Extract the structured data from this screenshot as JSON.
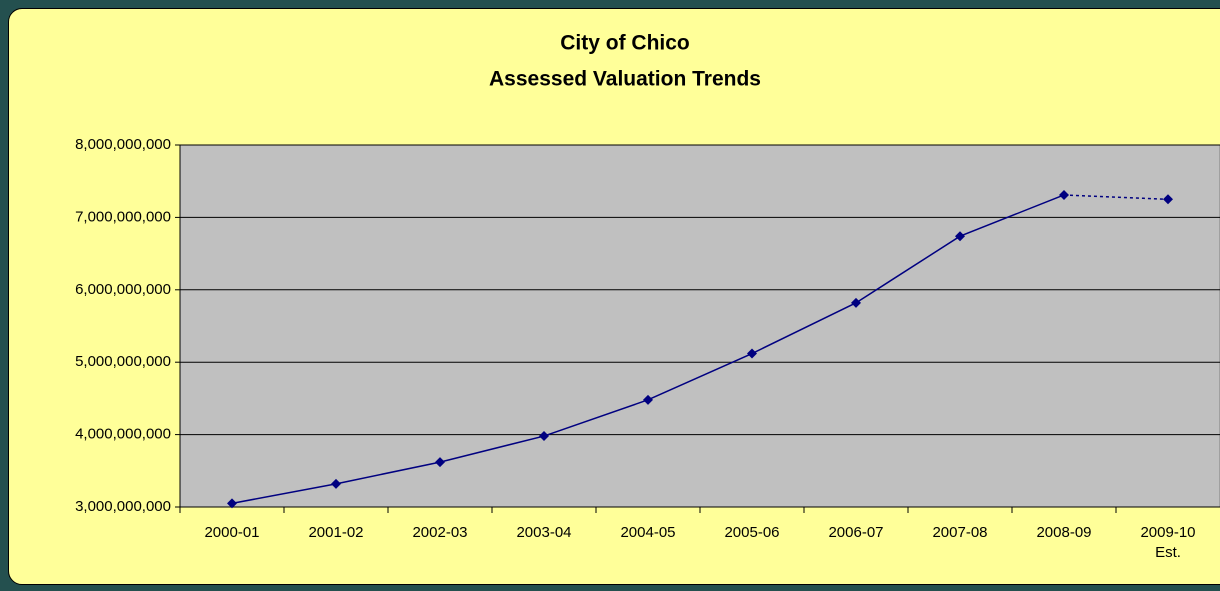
{
  "chart_data": {
    "type": "line",
    "title": "City of Chico",
    "subtitle": "Assessed Valuation Trends",
    "categories": [
      "2000-01",
      "2001-02",
      "2002-03",
      "2003-04",
      "2004-05",
      "2005-06",
      "2006-07",
      "2007-08",
      "2008-09",
      "2009-10\nEst."
    ],
    "series": [
      {
        "color": "#000080",
        "values": [
          3050000000,
          3320000000,
          3620000000,
          3980000000,
          4480000000,
          5120000000,
          5820000000,
          6740000000,
          7310000000,
          7250000000
        ]
      }
    ],
    "dashed_last_segment": true,
    "ylim": [
      3000000000,
      8000000000
    ],
    "yticks": [
      {
        "value": 3000000000,
        "label": "3,000,000,000"
      },
      {
        "value": 4000000000,
        "label": "4,000,000,000"
      },
      {
        "value": 5000000000,
        "label": "5,000,000,000"
      },
      {
        "value": 6000000000,
        "label": "6,000,000,000"
      },
      {
        "value": 7000000000,
        "label": "7,000,000,000"
      },
      {
        "value": 8000000000,
        "label": "8,000,000,000"
      }
    ],
    "grid": true,
    "plot_background": "#c0c0c0"
  }
}
